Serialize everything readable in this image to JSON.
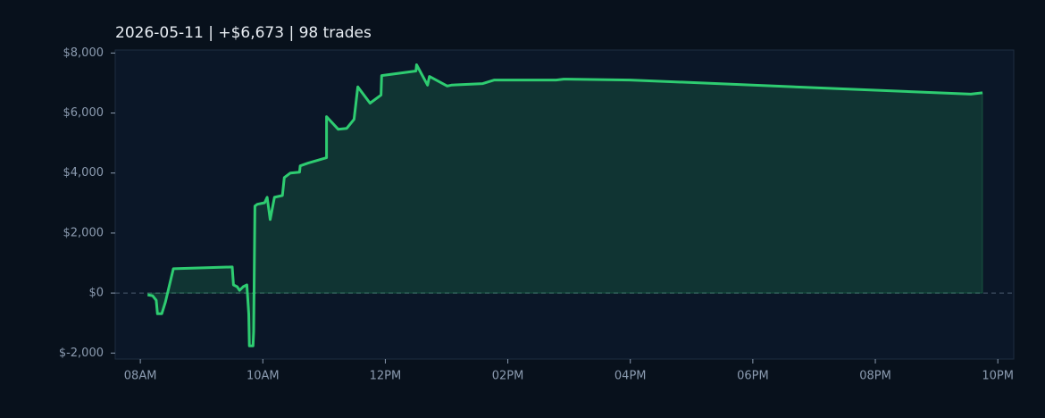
{
  "chart_data": {
    "type": "area_line",
    "title": "2026-05-11  |  +$6,673  |  98 trades",
    "x": [
      8.12,
      8.2,
      8.26,
      8.28,
      8.35,
      8.41,
      8.54,
      9.5,
      9.52,
      9.58,
      9.62,
      9.68,
      9.74,
      9.77,
      9.78,
      9.84,
      9.85,
      9.87,
      9.91,
      10.03,
      10.07,
      10.12,
      10.19,
      10.32,
      10.35,
      10.45,
      10.6,
      10.61,
      10.74,
      11.04,
      11.04,
      11.23,
      11.37,
      11.49,
      11.55,
      11.75,
      11.93,
      11.94,
      12.5,
      12.51,
      12.69,
      12.72,
      13.01,
      13.08,
      13.59,
      13.78,
      14.79,
      14.91,
      16.0,
      21.56,
      21.75
    ],
    "values": [
      -60,
      -90,
      -240,
      -690,
      -690,
      -300,
      810,
      870,
      270,
      210,
      90,
      210,
      270,
      -690,
      -1760,
      -1760,
      -1280,
      2900,
      2960,
      3010,
      3190,
      2450,
      3190,
      3250,
      3850,
      4000,
      4030,
      4240,
      4330,
      4510,
      5880,
      5460,
      5490,
      5790,
      6870,
      6330,
      6600,
      7250,
      7400,
      7610,
      6930,
      7220,
      6900,
      6930,
      6980,
      7100,
      7100,
      7130,
      7100,
      6630,
      6673
    ],
    "color": "#2ecc71",
    "xlim": [
      7.59,
      22.26
    ],
    "xticks": [
      {
        "value": 8,
        "label": "08AM"
      },
      {
        "value": 10,
        "label": "10AM"
      },
      {
        "value": 12,
        "label": "12PM"
      },
      {
        "value": 14,
        "label": "02PM"
      },
      {
        "value": 16,
        "label": "04PM"
      },
      {
        "value": 18,
        "label": "06PM"
      },
      {
        "value": 20,
        "label": "08PM"
      },
      {
        "value": 22,
        "label": "10PM"
      }
    ],
    "ylim": [
      -2200,
      8100
    ],
    "yticks": [
      {
        "value": -2000,
        "label": "$-2,000"
      },
      {
        "value": 0,
        "label": "$0"
      },
      {
        "value": 2000,
        "label": "$2,000"
      },
      {
        "value": 4000,
        "label": "$4,000"
      },
      {
        "value": 6000,
        "label": "$6,000"
      },
      {
        "value": 8000,
        "label": "$8,000"
      }
    ],
    "zero_line": true
  }
}
